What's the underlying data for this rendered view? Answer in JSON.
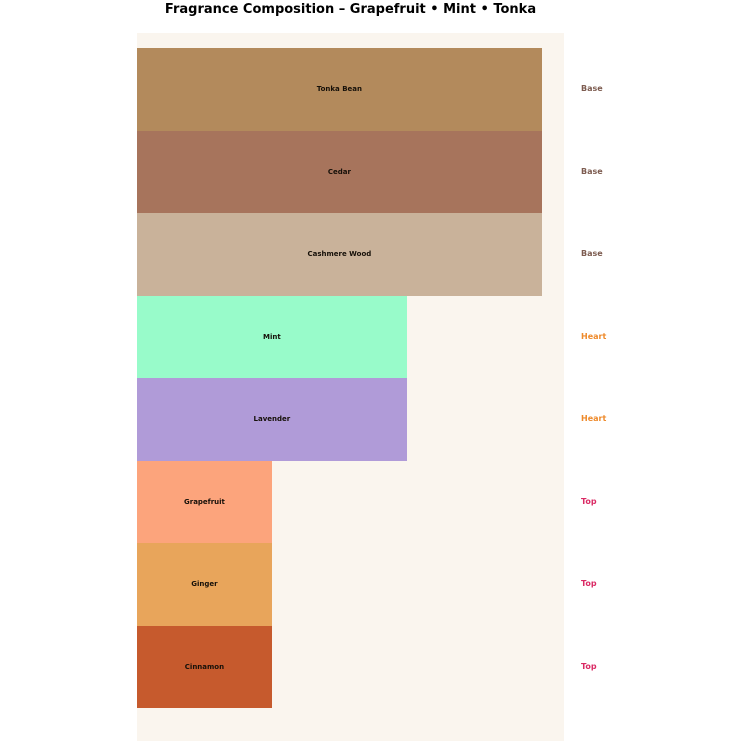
{
  "page": {
    "background_color": "#ffffff"
  },
  "chart_data": {
    "type": "bar",
    "orientation": "horizontal",
    "title": "Fragrance Composition – Grapefruit • Mint • Tonka",
    "xlabel": "",
    "ylabel": "",
    "xlim": [
      0,
      3.165
    ],
    "axes_visible": false,
    "grid": false,
    "legend": "none",
    "plot_background_color": "#faf5ee",
    "categories": [
      "Tonka Bean",
      "Cedar",
      "Cashmere Wood",
      "Mint",
      "Lavender",
      "Grapefruit",
      "Ginger",
      "Cinnamon"
    ],
    "values": [
      3,
      3,
      3,
      2,
      2,
      1,
      1,
      1
    ],
    "note_types": [
      "Base",
      "Base",
      "Base",
      "Heart",
      "Heart",
      "Top",
      "Top",
      "Top"
    ],
    "bars": [
      {
        "name": "Tonka Bean",
        "note_type": "Base",
        "value": 3,
        "color": "#b38a5c"
      },
      {
        "name": "Cedar",
        "note_type": "Base",
        "value": 3,
        "color": "#a7745c"
      },
      {
        "name": "Cashmere Wood",
        "note_type": "Base",
        "value": 3,
        "color": "#c9b29a"
      },
      {
        "name": "Mint",
        "note_type": "Heart",
        "value": 2,
        "color": "#98fbca"
      },
      {
        "name": "Lavender",
        "note_type": "Heart",
        "value": 2,
        "color": "#b09bd8"
      },
      {
        "name": "Grapefruit",
        "note_type": "Top",
        "value": 1,
        "color": "#fca47c"
      },
      {
        "name": "Ginger",
        "note_type": "Top",
        "value": 1,
        "color": "#e8a55b"
      },
      {
        "name": "Cinnamon",
        "note_type": "Top",
        "value": 1,
        "color": "#c65a2d"
      }
    ],
    "note_type_colors": {
      "Base": "#7d5c50",
      "Heart": "#ee8a2b",
      "Top": "#da2a64"
    },
    "bar_label_color": "#161009",
    "title_color": "#000000"
  }
}
